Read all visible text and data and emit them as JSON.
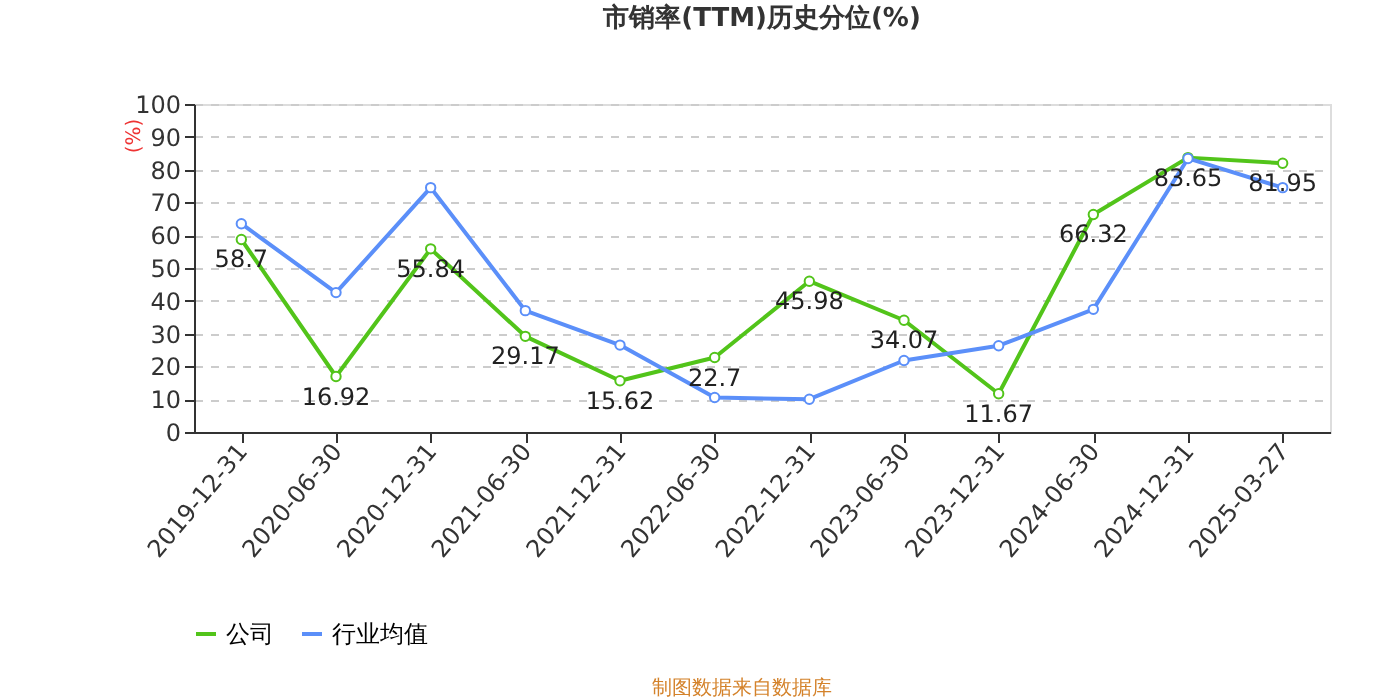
{
  "chart_data": {
    "type": "line",
    "title": "市销率(TTM)历史分位(%)",
    "ylabel": "(%)",
    "categories": [
      "2019-12-31",
      "2020-06-30",
      "2020-12-31",
      "2021-06-30",
      "2021-12-31",
      "2022-06-30",
      "2022-12-31",
      "2023-06-30",
      "2023-12-31",
      "2024-06-30",
      "2024-12-31",
      "2025-03-27"
    ],
    "series": [
      {
        "name": "公司",
        "color": "#52c41a",
        "values": [
          58.7,
          16.92,
          55.84,
          29.17,
          15.62,
          22.7,
          45.98,
          34.07,
          11.67,
          66.32,
          83.65,
          81.95
        ],
        "value_labels": [
          "58.7",
          "16.92",
          "55.84",
          "29.17",
          "15.62",
          "22.7",
          "45.98",
          "34.07",
          "11.67",
          "66.32",
          "83.65",
          "81.95"
        ]
      },
      {
        "name": "行业均值",
        "color": "#5b8ff9",
        "values": [
          63.5,
          42.5,
          74.5,
          37,
          26.5,
          10.5,
          10,
          21.8,
          26.3,
          37.4,
          83.4,
          74.5
        ]
      }
    ],
    "ylim": [
      0,
      100
    ],
    "yticks": [
      0,
      10,
      20,
      30,
      40,
      50,
      60,
      70,
      80,
      90,
      100
    ],
    "grid": "y",
    "legend": "bottom",
    "marker": "circle",
    "line_style": "solid",
    "annotations": [
      "制图数据来自数据库"
    ]
  }
}
